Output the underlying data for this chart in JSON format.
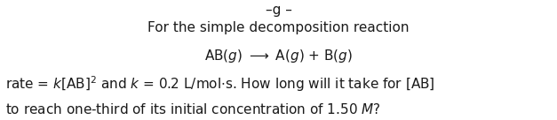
{
  "bg_color": "#ffffff",
  "text_color": "#1a1a1a",
  "line1": "For the simple decomposition reaction",
  "line2": "AB(​g​) → A(​g​) + B(​g​)",
  "line3a": "rate = ",
  "line3b": "k",
  "line3c": "[AB]",
  "line3d": "2",
  "line3e": " and ",
  "line3f": "k",
  "line3g": " = 0.2 L/mol·s. How long will it take for [AB]",
  "line4a": "to reach one-third of its initial concentration of 1.50 ",
  "line4b": "M",
  "line4c": "?",
  "top_partial": "–g –",
  "figsize": [
    6.27,
    1.36
  ],
  "dpi": 100,
  "fontsize": 11.0
}
